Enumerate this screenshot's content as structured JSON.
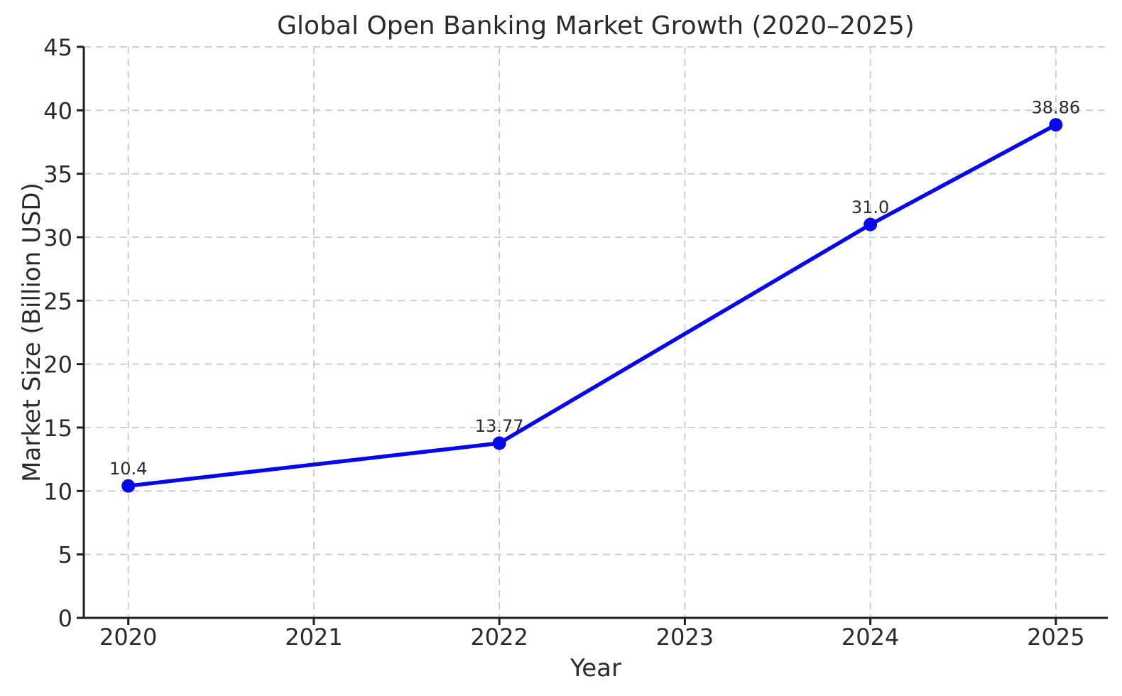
{
  "chart_data": {
    "type": "line",
    "title": "Global Open Banking Market Growth (2020–2025)",
    "xlabel": "Year",
    "ylabel": "Market Size (Billion USD)",
    "x": [
      2020,
      2022,
      2024,
      2025
    ],
    "values": [
      10.4,
      13.77,
      31.0,
      38.86
    ],
    "point_labels": [
      "10.4",
      "13.77",
      "31.0",
      "38.86"
    ],
    "x_tick_values": [
      2020,
      2021,
      2022,
      2023,
      2024,
      2025
    ],
    "x_tick_labels": [
      "2020",
      "2021",
      "2022",
      "2023",
      "2024",
      "2025"
    ],
    "y_tick_values": [
      0,
      5,
      10,
      15,
      20,
      25,
      30,
      35,
      40,
      45
    ],
    "y_tick_labels": [
      "0",
      "5",
      "10",
      "15",
      "20",
      "25",
      "30",
      "35",
      "40",
      "45"
    ],
    "xlim": [
      2019.76,
      2025.28
    ],
    "ylim": [
      0,
      45
    ],
    "grid": true,
    "grid_style": "dashed",
    "legend": "none",
    "marker": "circle",
    "line_color": "#0707ee",
    "marker_color": "#0707ee",
    "grid_color": "#cbcbcb",
    "spine_color": "#1f1f1f",
    "text_color": "#2b2b2b",
    "background_color": "#ffffff"
  }
}
